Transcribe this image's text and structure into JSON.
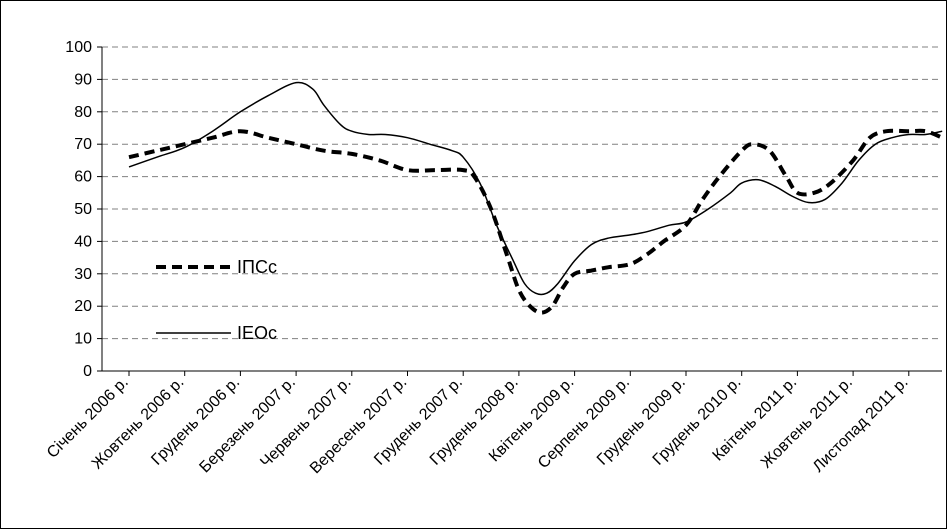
{
  "chart_data": {
    "type": "line",
    "title": "",
    "xlabel": "",
    "ylabel": "",
    "ylim": [
      0,
      100
    ],
    "yticks": [
      0,
      10,
      20,
      30,
      40,
      50,
      60,
      70,
      80,
      90,
      100
    ],
    "grid": "horizontal dashed",
    "legend_position": "left-middle",
    "x_tick_labels": [
      "Січень 2006 р.",
      "Жовтень 2006 р.",
      "Грудень 2006 р.",
      "Березень 2007 р.",
      "Червень 2007 р.",
      "Вересень 2007 р.",
      "Грудень 2007 р.",
      "Грудень 2008 р.",
      "Квітень 2009 р.",
      "Серпень 2009 р.",
      "Грудень 2009 р.",
      "Грудень 2010 р.",
      "Квітень 2011 р.",
      "Жовтень 2011 р.",
      "Листопад 2011 р."
    ],
    "series": [
      {
        "name": "ІПСс",
        "style": "dashed-bold",
        "color": "#000000",
        "x": [
          0,
          0.5,
          1,
          1.5,
          2,
          2.5,
          3,
          3.5,
          4,
          4.5,
          5,
          5.5,
          6,
          6.2,
          6.5,
          6.8,
          7,
          7.2,
          7.4,
          7.6,
          7.8,
          8,
          8.3,
          8.6,
          9,
          9.3,
          9.6,
          10,
          10.3,
          10.6,
          11,
          11.2,
          11.5,
          11.8,
          12,
          12.3,
          12.6,
          13,
          13.3,
          13.6,
          14,
          14.3,
          14.6
        ],
        "values": [
          66,
          68,
          70,
          72,
          74,
          72,
          70,
          68,
          67,
          65,
          62,
          62,
          62,
          60,
          50,
          35,
          25,
          20,
          18,
          20,
          26,
          30,
          31,
          32,
          33,
          36,
          40,
          45,
          53,
          60,
          68,
          70,
          68,
          60,
          55,
          55,
          58,
          65,
          72,
          74,
          74,
          74,
          72
        ]
      },
      {
        "name": "ІЕОс",
        "style": "solid",
        "color": "#000000",
        "x": [
          0,
          0.5,
          1,
          1.5,
          2,
          2.5,
          3,
          3.3,
          3.5,
          3.8,
          4,
          4.3,
          4.6,
          5,
          5.4,
          5.8,
          6,
          6.3,
          6.6,
          6.9,
          7.1,
          7.3,
          7.5,
          7.7,
          8,
          8.3,
          8.6,
          9,
          9.3,
          9.7,
          10,
          10.4,
          10.8,
          11,
          11.3,
          11.6,
          11.9,
          12.2,
          12.5,
          12.8,
          13.1,
          13.4,
          13.7,
          14,
          14.3,
          14.6
        ],
        "values": [
          63,
          66,
          69,
          74,
          80,
          85,
          89,
          87,
          82,
          76,
          74,
          73,
          73,
          72,
          70,
          68,
          66,
          58,
          45,
          34,
          27,
          24,
          24,
          27,
          34,
          39,
          41,
          42,
          43,
          45,
          46,
          50,
          55,
          58,
          59,
          57,
          54,
          52,
          53,
          58,
          65,
          70,
          72,
          73,
          73,
          74
        ]
      }
    ]
  }
}
